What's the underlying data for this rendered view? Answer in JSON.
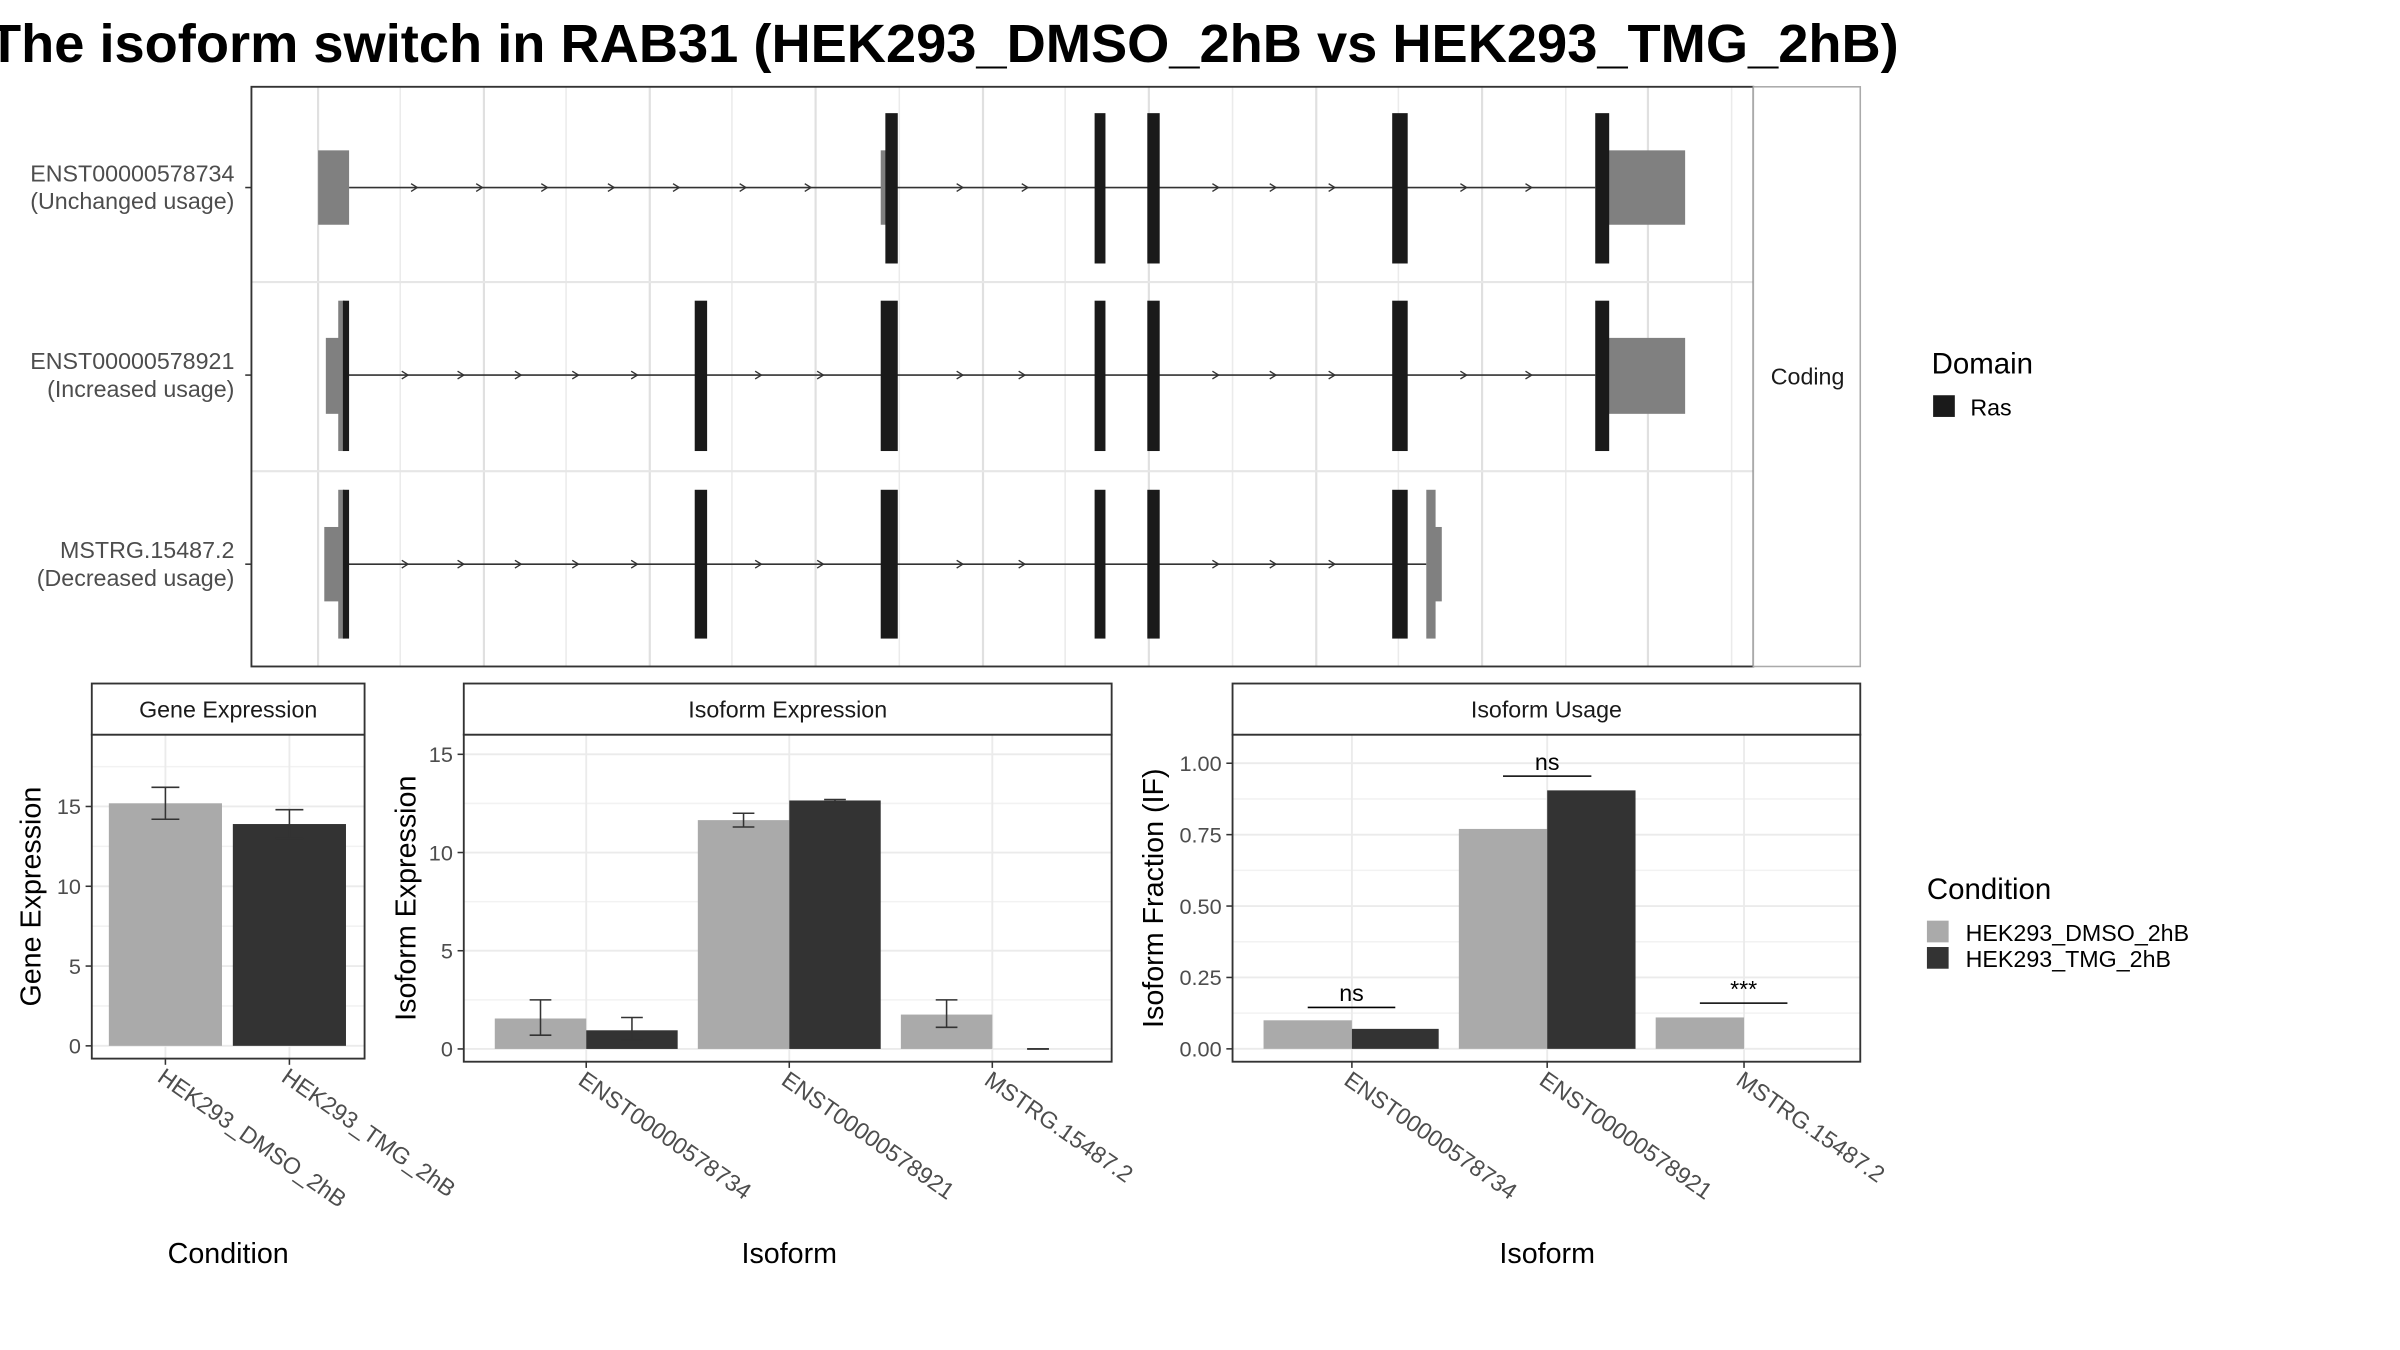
{
  "title": "The isoform switch in RAB31 (HEK293_DMSO_2hB vs HEK293_TMG_2hB)",
  "structure": {
    "strip_label": "Coding",
    "domain_legend": {
      "title": "Domain",
      "entries": [
        {
          "label": "Ras",
          "color": "#1a1a1a"
        }
      ]
    },
    "transcripts": [
      {
        "id": "ENST00000578734",
        "label": "ENST00000578734",
        "usage": "(Unchanged usage)"
      },
      {
        "id": "ENST00000578921",
        "label": "ENST00000578921",
        "usage": "(Increased usage)"
      },
      {
        "id": "MSTRG.15487.2",
        "label": "MSTRG.15487.2",
        "usage": "(Decreased usage)"
      }
    ]
  },
  "chart_data": [
    {
      "type": "bar",
      "title": "Gene Expression",
      "xlabel": "Condition",
      "ylabel": "Gene Expression",
      "categories": [
        "HEK293_DMSO_2hB",
        "HEK293_TMG_2hB"
      ],
      "values": [
        15.2,
        13.9
      ],
      "errors": [
        [
          14.2,
          16.2
        ],
        [
          13.0,
          14.8
        ]
      ],
      "ylim": [
        -0.8,
        19.5
      ],
      "yticks": [
        0,
        5,
        10,
        15
      ],
      "colors": [
        "#aaaaaa",
        "#333333"
      ]
    },
    {
      "type": "bar",
      "title": "Isoform Expression",
      "xlabel": "Isoform",
      "ylabel": "Isoform Expression",
      "categories": [
        "ENST00000578734",
        "ENST00000578921",
        "MSTRG.15487.2"
      ],
      "series": [
        {
          "name": "HEK293_DMSO_2hB",
          "values": [
            1.55,
            11.65,
            1.75
          ],
          "errors": [
            [
              0.7,
              2.5
            ],
            [
              11.3,
              12.0
            ],
            [
              1.1,
              2.5
            ]
          ]
        },
        {
          "name": "HEK293_TMG_2hB",
          "values": [
            0.95,
            12.65,
            0.0
          ],
          "errors": [
            [
              0.45,
              1.6
            ],
            [
              12.6,
              12.7
            ],
            [
              0.0,
              0.0
            ]
          ]
        }
      ],
      "ylim": [
        -0.65,
        16.0
      ],
      "yticks": [
        0,
        5,
        10,
        15
      ],
      "colors": [
        "#aaaaaa",
        "#333333"
      ]
    },
    {
      "type": "bar",
      "title": "Isoform Usage",
      "xlabel": "Isoform",
      "ylabel": "Isoform Fraction (IF)",
      "categories": [
        "ENST00000578734",
        "ENST00000578921",
        "MSTRG.15487.2"
      ],
      "series": [
        {
          "name": "HEK293_DMSO_2hB",
          "values": [
            0.1,
            0.77,
            0.11
          ]
        },
        {
          "name": "HEK293_TMG_2hB",
          "values": [
            0.07,
            0.905,
            0.0
          ]
        }
      ],
      "significance": [
        {
          "label": "ns",
          "y": 0.145
        },
        {
          "label": "ns",
          "y": 0.955
        },
        {
          "label": "***",
          "y": 0.16
        }
      ],
      "ylim": [
        -0.045,
        1.1
      ],
      "yticks": [
        0.0,
        0.25,
        0.5,
        0.75,
        1.0
      ],
      "ytick_labels": [
        "0.00",
        "0.25",
        "0.50",
        "0.75",
        "1.00"
      ],
      "colors": [
        "#aaaaaa",
        "#333333"
      ]
    }
  ],
  "condition_legend": {
    "title": "Condition",
    "entries": [
      {
        "label": "HEK293_DMSO_2hB",
        "color": "#aaaaaa"
      },
      {
        "label": "HEK293_TMG_2hB",
        "color": "#333333"
      }
    ]
  }
}
